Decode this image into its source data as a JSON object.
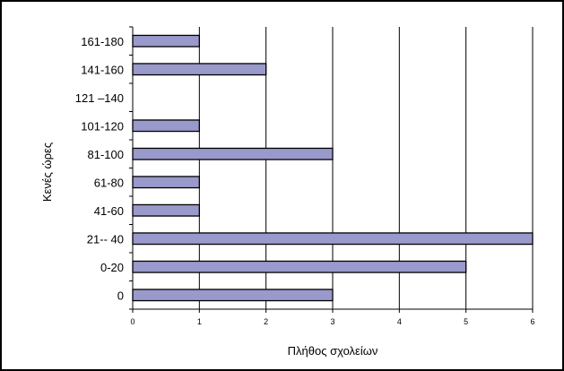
{
  "chart_data": {
    "type": "bar",
    "orientation": "horizontal",
    "categories": [
      "0",
      "0-20",
      "21-- 40",
      "41-60",
      "61-80",
      "81-100",
      "101-120",
      "121 –140",
      "141-160",
      "161-180"
    ],
    "values": [
      3,
      5,
      6,
      1,
      1,
      3,
      1,
      0,
      2,
      1
    ],
    "xlabel": "Πλήθος σχολείων",
    "ylabel": "Κενές ώρες",
    "xlim": [
      0,
      6
    ],
    "xticks": [
      "0",
      "1",
      "2",
      "3",
      "4",
      "5",
      "6"
    ],
    "grid": "vertical",
    "legend": "none",
    "colors": {
      "bar_fill": "#9999cc",
      "bar_stroke": "#000000",
      "grid": "#000000",
      "frame": "#000000"
    }
  }
}
